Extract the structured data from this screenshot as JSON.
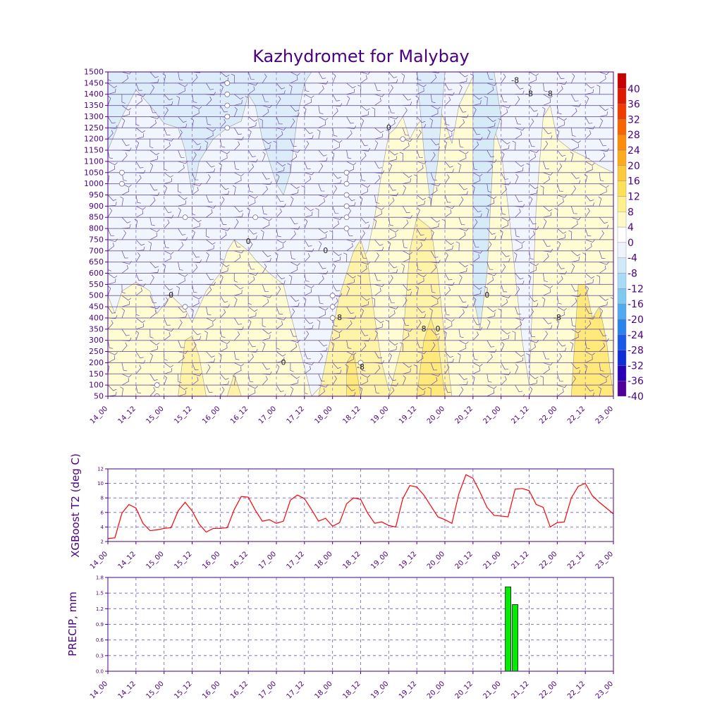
{
  "colors": {
    "text": "#4b0082",
    "frame": "#4b0082",
    "grid": "#6a5acd",
    "t2_line": "#ff0000",
    "precip_bar": "#00ee00",
    "precip_edge": "#111111",
    "barb": "#6b4aa8"
  },
  "chart_data": [
    {
      "type": "heatmap",
      "title": "Kazhydromet for Malybay",
      "x_ticks": [
        "14_00",
        "14_12",
        "15_00",
        "15_12",
        "16_00",
        "16_12",
        "17_00",
        "17_12",
        "18_00",
        "18_12",
        "19_00",
        "19_12",
        "20_00",
        "20_12",
        "21_00",
        "21_12",
        "22_00",
        "22_12",
        "23_00"
      ],
      "y_ticks": [
        1500,
        1450,
        1400,
        1350,
        1300,
        1250,
        1200,
        1150,
        1100,
        1050,
        1000,
        950,
        900,
        850,
        800,
        750,
        700,
        650,
        600,
        550,
        500,
        450,
        400,
        350,
        300,
        250,
        200,
        150,
        100,
        50
      ],
      "ylim": [
        50,
        1500
      ],
      "colorbar": {
        "labels": [
          "40",
          "36",
          "32",
          "28",
          "24",
          "20",
          "16",
          "12",
          "8",
          "4",
          "0",
          "-4",
          "-8",
          "-12",
          "-16",
          "-20",
          "-24",
          "-28",
          "-32",
          "-36",
          "-40"
        ],
        "colors": [
          "#c80000",
          "#e01a00",
          "#f03c00",
          "#f86400",
          "#fc8c0a",
          "#fcaa1e",
          "#fcc83c",
          "#fde05a",
          "#fef08c",
          "#fffac8",
          "#ffffff",
          "#eef4ff",
          "#cfe9fb",
          "#a8dcf6",
          "#7fc8f2",
          "#50aaf0",
          "#2a84ec",
          "#1a5ae6",
          "#0f2ed8",
          "#2800b8",
          "#50009a"
        ]
      },
      "contour_labels": [
        "0",
        "0",
        "0",
        "0",
        "0",
        "0",
        "0",
        "-8",
        "-8",
        "-8",
        "-8",
        "8",
        "8",
        "8"
      ],
      "grid": true
    },
    {
      "type": "line",
      "ylabel": "XGBoost T2 (deg C)",
      "x_ticks": [
        "14_00",
        "14_12",
        "15_00",
        "15_12",
        "16_00",
        "16_12",
        "17_00",
        "17_12",
        "18_00",
        "18_12",
        "19_00",
        "19_12",
        "20_00",
        "20_12",
        "21_00",
        "21_12",
        "22_00",
        "22_12",
        "23_00"
      ],
      "y_ticks": [
        "2",
        "4",
        "6",
        "8",
        "10",
        "12"
      ],
      "ylim": [
        2,
        12
      ],
      "xlim": [
        0,
        72
      ],
      "series": [
        {
          "x": [
            0,
            1,
            2,
            3,
            4,
            5,
            6,
            7,
            8,
            9,
            10,
            11,
            12,
            13,
            14,
            15,
            16,
            17,
            18,
            19,
            20,
            21,
            22,
            23,
            24,
            25,
            26,
            27,
            28,
            29,
            30,
            31,
            32,
            33,
            34,
            35,
            36,
            37,
            38,
            39,
            40,
            41,
            42,
            43,
            44,
            45,
            46,
            47,
            48,
            49,
            50,
            51,
            52,
            53,
            54,
            55,
            56,
            57,
            58,
            59,
            60,
            61,
            62,
            63,
            64,
            65,
            66,
            67,
            68,
            69,
            70,
            71,
            72
          ],
          "values": [
            2.4,
            2.5,
            5.9,
            7.1,
            6.6,
            4.5,
            3.5,
            3.6,
            3.8,
            3.9,
            6.2,
            7.4,
            6.2,
            4.4,
            3.3,
            3.8,
            3.8,
            3.9,
            6.4,
            8.2,
            8.1,
            6.3,
            4.8,
            5.0,
            4.5,
            4.8,
            7.7,
            8.4,
            7.9,
            6.4,
            4.8,
            5.2,
            4.1,
            4.6,
            7.2,
            8.0,
            7.8,
            5.9,
            4.5,
            4.7,
            4.2,
            4.0,
            7.9,
            9.7,
            9.5,
            8.4,
            6.9,
            5.4,
            5.0,
            4.5,
            8.6,
            11.2,
            10.7,
            8.8,
            6.7,
            5.6,
            5.5,
            5.4,
            9.2,
            9.3,
            9.0,
            7.1,
            6.7,
            4.0,
            4.6,
            4.7,
            8.0,
            9.6,
            10.0,
            8.3,
            7.4,
            6.6,
            5.8
          ]
        }
      ],
      "grid": true
    },
    {
      "type": "bar",
      "ylabel": "PRECIP, mm",
      "x_ticks": [
        "14_00",
        "14_12",
        "15_00",
        "15_12",
        "16_00",
        "16_12",
        "17_00",
        "17_12",
        "18_00",
        "18_12",
        "19_00",
        "19_12",
        "20_00",
        "20_12",
        "21_00",
        "21_12",
        "22_00",
        "22_12",
        "23_00"
      ],
      "y_ticks": [
        "0.0",
        "0.3",
        "0.6",
        "0.9",
        "1.2",
        "1.5",
        "1.8"
      ],
      "ylim": [
        0,
        1.8
      ],
      "xlim": [
        0,
        72
      ],
      "series": [
        {
          "x": [
            57,
            58
          ],
          "values": [
            1.62,
            1.28
          ]
        }
      ],
      "grid": true
    }
  ]
}
